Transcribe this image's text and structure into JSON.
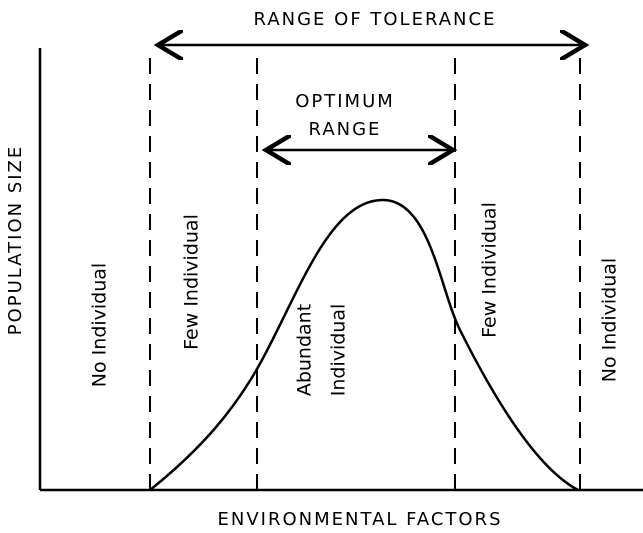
{
  "range_of_tolerance": "RANGE OF TOLERANCE",
  "optimum_range": [
    "OPTIMUM",
    "RANGE"
  ],
  "y_axis_label": "POPULATION SIZE",
  "x_axis_label": "ENVIRONMENTAL FACTORS",
  "zones": [
    {
      "lines": [
        "No Individual"
      ]
    },
    {
      "lines": [
        "Few Individual"
      ]
    },
    {
      "lines": [
        "Abundant",
        "Individual"
      ]
    },
    {
      "lines": [
        "Few Individual"
      ]
    },
    {
      "lines": [
        "No Individual"
      ]
    }
  ]
}
